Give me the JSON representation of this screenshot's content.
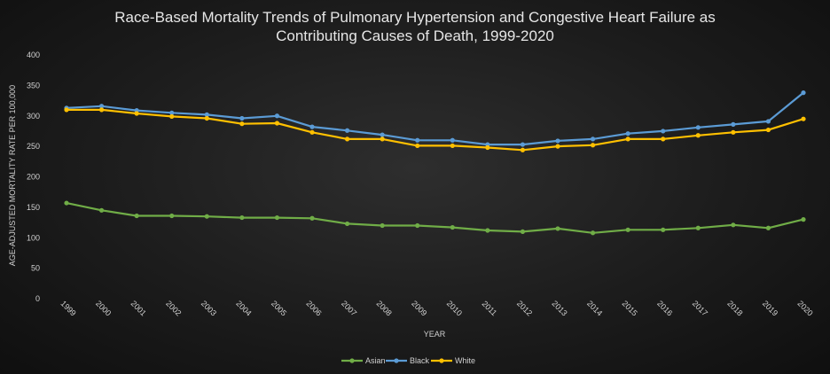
{
  "chart_data": {
    "type": "line",
    "title_lines": [
      "Race-Based Mortality Trends of Pulmonary Hypertension and Congestive Heart Failure as",
      "Contributing Causes of Death, 1999-2020"
    ],
    "xlabel": "YEAR",
    "ylabel": "AGE-ADJUSTED MORTALITY RATE PER 100,000",
    "ylim": [
      0,
      400
    ],
    "yticks": [
      0,
      50,
      100,
      150,
      200,
      250,
      300,
      350,
      400
    ],
    "categories": [
      "1999",
      "2000",
      "2001",
      "2002",
      "2003",
      "2004",
      "2005",
      "2006",
      "2007",
      "2008",
      "2009",
      "2010",
      "2011",
      "2012",
      "2013",
      "2014",
      "2015",
      "2016",
      "2017",
      "2018",
      "2019",
      "2020"
    ],
    "series": [
      {
        "name": "Asian",
        "color": "#70ad47",
        "values": [
          157,
          145,
          136,
          136,
          135,
          133,
          133,
          132,
          123,
          120,
          120,
          117,
          112,
          110,
          115,
          108,
          113,
          113,
          116,
          121,
          116,
          130
        ]
      },
      {
        "name": "Black",
        "color": "#5b9bd5",
        "values": [
          313,
          316,
          309,
          305,
          302,
          296,
          300,
          282,
          276,
          269,
          260,
          260,
          253,
          253,
          259,
          262,
          271,
          275,
          281,
          286,
          291,
          338
        ]
      },
      {
        "name": "White",
        "color": "#ffc000",
        "values": [
          310,
          310,
          304,
          299,
          296,
          287,
          288,
          273,
          262,
          262,
          251,
          251,
          248,
          244,
          250,
          252,
          262,
          262,
          268,
          273,
          277,
          295
        ]
      }
    ],
    "grid": false,
    "legend": "bottom"
  }
}
